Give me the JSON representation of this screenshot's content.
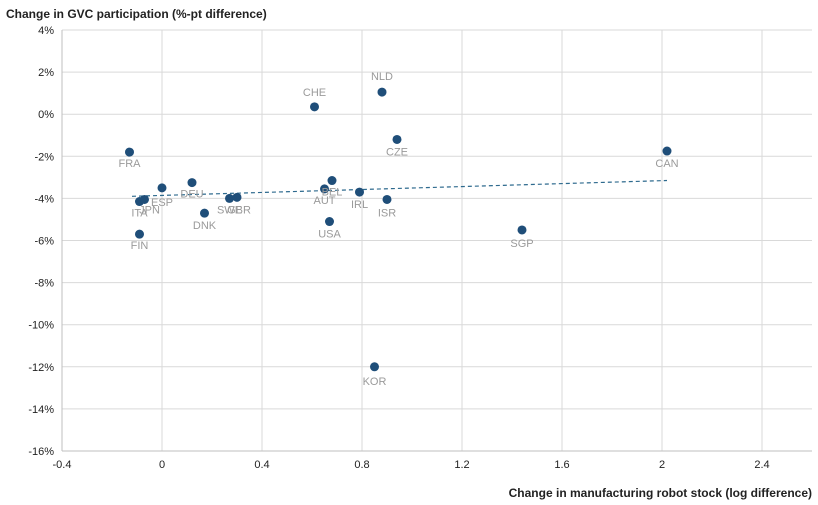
{
  "chart_data": {
    "type": "scatter",
    "ylabel": "Change in GVC participation (%-pt difference)",
    "xlabel": "Change in manufacturing robot stock (log difference)",
    "xlim": [
      -0.4,
      2.6
    ],
    "ylim": [
      -16,
      4
    ],
    "x_ticks": [
      -0.4,
      0,
      0.4,
      0.8,
      1.2,
      1.6,
      2,
      2.4
    ],
    "x_tick_labels": [
      "-0.4",
      "0",
      "0.4",
      "0.8",
      "1.2",
      "1.6",
      "2",
      "2.4"
    ],
    "y_ticks": [
      4,
      2,
      0,
      -2,
      -4,
      -6,
      -8,
      -10,
      -12,
      -14,
      -16
    ],
    "y_tick_labels": [
      "4%",
      "2%",
      "0%",
      "-2%",
      "-4%",
      "-6%",
      "-8%",
      "-10%",
      "-12%",
      "-14%",
      "-16%"
    ],
    "grid": true,
    "point_color": "#1f4e79",
    "label_color": "#9a9a9a",
    "trendline": {
      "style": "dashed",
      "color": "#2e6a8e",
      "x": [
        -0.12,
        2.02
      ],
      "y": [
        -3.9,
        -3.15
      ]
    },
    "points": [
      {
        "label": "FRA",
        "x": -0.13,
        "y": -1.8
      },
      {
        "label": "ITA",
        "x": -0.09,
        "y": -4.15
      },
      {
        "label": "JPN",
        "x": -0.07,
        "y": -4.05
      },
      {
        "label": "FIN",
        "x": -0.09,
        "y": -5.7
      },
      {
        "label": "ESP",
        "x": 0.0,
        "y": -3.5
      },
      {
        "label": "DEU",
        "x": 0.12,
        "y": -3.25
      },
      {
        "label": "DNK",
        "x": 0.17,
        "y": -4.7
      },
      {
        "label": "SWE",
        "x": 0.27,
        "y": -4.0
      },
      {
        "label": "GBR",
        "x": 0.3,
        "y": -3.95
      },
      {
        "label": "CHE",
        "x": 0.61,
        "y": 0.35
      },
      {
        "label": "BEL",
        "x": 0.68,
        "y": -3.15
      },
      {
        "label": "AUT",
        "x": 0.65,
        "y": -3.55
      },
      {
        "label": "USA",
        "x": 0.67,
        "y": -5.1
      },
      {
        "label": "IRL",
        "x": 0.79,
        "y": -3.7
      },
      {
        "label": "KOR",
        "x": 0.85,
        "y": -12.0
      },
      {
        "label": "NLD",
        "x": 0.88,
        "y": 1.05
      },
      {
        "label": "ISR",
        "x": 0.9,
        "y": -4.05
      },
      {
        "label": "CZE",
        "x": 0.94,
        "y": -1.2
      },
      {
        "label": "SGP",
        "x": 1.44,
        "y": -5.5
      },
      {
        "label": "CAN",
        "x": 2.02,
        "y": -1.75
      }
    ]
  }
}
